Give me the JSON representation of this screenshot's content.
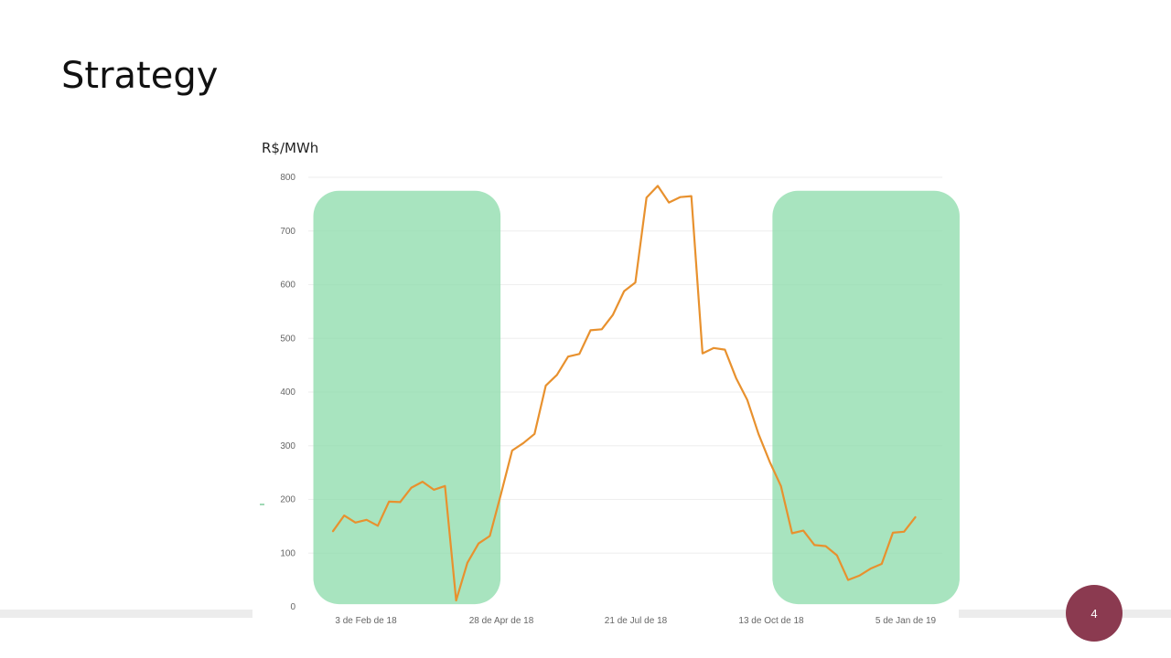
{
  "slide": {
    "title": "Strategy",
    "page_number": "4"
  },
  "colors": {
    "line": "#e8912e",
    "highlight": "#8fdcad",
    "grid": "#eeeeee",
    "badge": "#8b3a50",
    "band": "#ececec"
  },
  "chart_data": {
    "type": "line",
    "title": "",
    "ylabel": "R$/MWh",
    "xlabel": "",
    "ylim": [
      0,
      800
    ],
    "yticks": [
      0,
      100,
      200,
      300,
      400,
      500,
      600,
      700,
      800
    ],
    "xtick_labels": [
      "3 de Feb de 18",
      "28 de Apr de 18",
      "21 de Jul de 18",
      "13 de Oct de 18",
      "5 de Jan de 19"
    ],
    "grid": true,
    "highlights": [
      {
        "from_index": -2,
        "to_index": 15
      },
      {
        "from_index": 39,
        "to_index": 56
      }
    ],
    "values": [
      141,
      170,
      157,
      162,
      151,
      196,
      195,
      222,
      233,
      218,
      225,
      12,
      82,
      118,
      132,
      210,
      291,
      305,
      322,
      412,
      432,
      466,
      471,
      515,
      517,
      544,
      588,
      604,
      762,
      784,
      753,
      763,
      765,
      472,
      482,
      479,
      426,
      385,
      322,
      270,
      225,
      137,
      142,
      115,
      113,
      96,
      50,
      58,
      71,
      80,
      138,
      140,
      167
    ]
  }
}
